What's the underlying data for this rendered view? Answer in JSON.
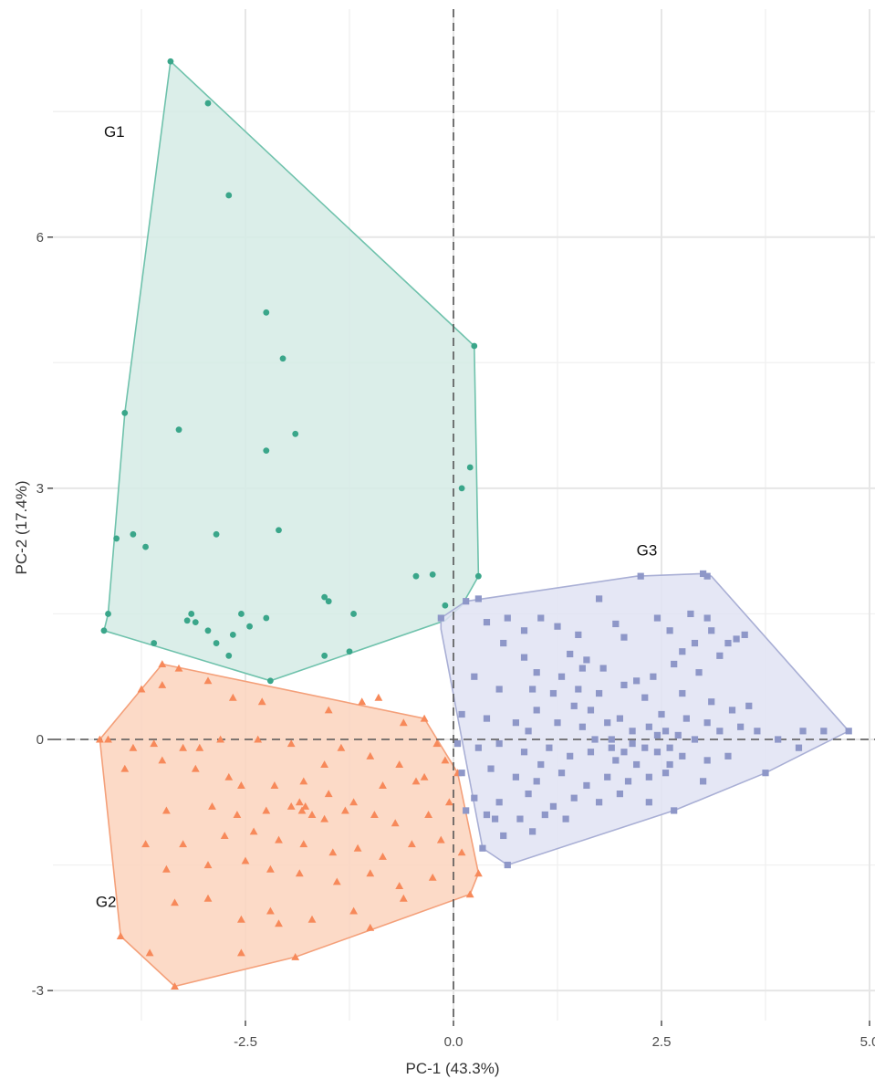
{
  "chart_data": {
    "type": "scatter",
    "title": "",
    "xlabel": "PC-1 (43.3%)",
    "ylabel": "PC-2 (17.4%)",
    "xlim": [
      -4.8,
      5.0
    ],
    "ylim": [
      -3.3,
      8.9
    ],
    "xticks": [
      -2.5,
      0.0,
      2.5,
      5.0
    ],
    "xtick_labels": [
      "-2.5",
      "0.0",
      "2.5",
      "5.0"
    ],
    "yticks": [
      -3,
      0,
      3,
      6
    ],
    "ytick_labels": [
      "-3",
      "0",
      "3",
      "6"
    ],
    "grid": true,
    "reference_lines": {
      "x": 0,
      "y": 0,
      "style": "dashed"
    },
    "series": [
      {
        "name": "G1",
        "marker": "circle",
        "color": "#3aa68a",
        "fill": "#d5ebe5",
        "stroke": "#6fc2ac",
        "hull": [
          [
            -3.4,
            8.1
          ],
          [
            0.25,
            4.7
          ],
          [
            0.3,
            1.95
          ],
          [
            0.1,
            1.6
          ],
          [
            -0.1,
            1.42
          ],
          [
            -2.2,
            0.7
          ],
          [
            -4.2,
            1.3
          ],
          [
            -4.15,
            1.5
          ],
          [
            -3.95,
            3.9
          ]
        ],
        "points": [
          [
            -3.4,
            8.1
          ],
          [
            -2.95,
            7.6
          ],
          [
            -2.7,
            6.5
          ],
          [
            -2.25,
            5.1
          ],
          [
            -2.05,
            4.55
          ],
          [
            -3.3,
            3.7
          ],
          [
            -2.25,
            3.45
          ],
          [
            -1.9,
            3.65
          ],
          [
            -3.95,
            3.9
          ],
          [
            -4.15,
            1.5
          ],
          [
            -4.2,
            1.3
          ],
          [
            -4.05,
            2.4
          ],
          [
            -3.85,
            2.45
          ],
          [
            -3.7,
            2.3
          ],
          [
            -2.85,
            2.45
          ],
          [
            -2.1,
            2.5
          ],
          [
            -3.6,
            1.15
          ],
          [
            -3.15,
            1.5
          ],
          [
            -3.2,
            1.42
          ],
          [
            -3.1,
            1.4
          ],
          [
            -2.95,
            1.3
          ],
          [
            -2.85,
            1.15
          ],
          [
            -2.65,
            1.25
          ],
          [
            -2.55,
            1.5
          ],
          [
            -2.45,
            1.35
          ],
          [
            -2.25,
            1.45
          ],
          [
            -2.7,
            1.0
          ],
          [
            -1.55,
            1.7
          ],
          [
            -1.5,
            1.65
          ],
          [
            -1.2,
            1.5
          ],
          [
            -1.55,
            1.0
          ],
          [
            -1.25,
            1.05
          ],
          [
            -0.45,
            1.95
          ],
          [
            -0.25,
            1.97
          ],
          [
            0.1,
            3.0
          ],
          [
            0.2,
            3.25
          ],
          [
            0.3,
            1.95
          ],
          [
            0.25,
            4.7
          ],
          [
            -0.1,
            1.6
          ],
          [
            -0.15,
            1.45
          ],
          [
            -2.2,
            0.7
          ]
        ]
      },
      {
        "name": "G2",
        "marker": "triangle",
        "color": "#f7895a",
        "fill": "#fcd3bd",
        "stroke": "#f4a07a",
        "hull": [
          [
            -3.5,
            0.9
          ],
          [
            -0.35,
            0.25
          ],
          [
            0.05,
            -0.4
          ],
          [
            0.3,
            -1.6
          ],
          [
            0.2,
            -1.85
          ],
          [
            -1.9,
            -2.6
          ],
          [
            -3.35,
            -2.95
          ],
          [
            -4.0,
            -2.35
          ],
          [
            -4.25,
            0.0
          ]
        ],
        "points": [
          [
            -3.5,
            0.9
          ],
          [
            -3.3,
            0.85
          ],
          [
            -2.95,
            0.7
          ],
          [
            -3.75,
            0.6
          ],
          [
            -3.5,
            0.65
          ],
          [
            -2.65,
            0.5
          ],
          [
            -2.3,
            0.45
          ],
          [
            -1.5,
            0.35
          ],
          [
            -1.1,
            0.45
          ],
          [
            -0.9,
            0.5
          ],
          [
            -0.6,
            0.2
          ],
          [
            -0.35,
            0.25
          ],
          [
            -0.2,
            -0.05
          ],
          [
            -4.25,
            0.0
          ],
          [
            -4.15,
            0.0
          ],
          [
            -3.85,
            -0.1
          ],
          [
            -3.6,
            -0.05
          ],
          [
            -3.25,
            -0.1
          ],
          [
            -3.05,
            -0.1
          ],
          [
            -2.8,
            0.0
          ],
          [
            -2.35,
            0.0
          ],
          [
            -1.95,
            -0.05
          ],
          [
            -1.55,
            -0.3
          ],
          [
            -1.35,
            -0.1
          ],
          [
            -1.0,
            -0.2
          ],
          [
            -0.65,
            -0.3
          ],
          [
            -0.45,
            -0.5
          ],
          [
            -3.95,
            -0.35
          ],
          [
            -3.5,
            -0.25
          ],
          [
            -3.1,
            -0.35
          ],
          [
            -2.7,
            -0.45
          ],
          [
            -2.55,
            -0.55
          ],
          [
            -2.15,
            -0.55
          ],
          [
            -1.8,
            -0.5
          ],
          [
            -1.5,
            -0.65
          ],
          [
            -1.2,
            -0.75
          ],
          [
            -0.85,
            -0.55
          ],
          [
            -0.35,
            -0.45
          ],
          [
            -0.1,
            -0.25
          ],
          [
            0.05,
            -0.4
          ],
          [
            -3.45,
            -0.85
          ],
          [
            -2.9,
            -0.8
          ],
          [
            -2.6,
            -0.9
          ],
          [
            -2.25,
            -0.85
          ],
          [
            -1.95,
            -0.8
          ],
          [
            -1.85,
            -0.75
          ],
          [
            -1.82,
            -0.85
          ],
          [
            -1.78,
            -0.8
          ],
          [
            -1.7,
            -0.9
          ],
          [
            -1.55,
            -0.95
          ],
          [
            -1.3,
            -0.85
          ],
          [
            -0.95,
            -0.9
          ],
          [
            -0.7,
            -1.0
          ],
          [
            -0.3,
            -0.9
          ],
          [
            -0.05,
            -0.75
          ],
          [
            -3.7,
            -1.25
          ],
          [
            -3.25,
            -1.25
          ],
          [
            -2.75,
            -1.15
          ],
          [
            -2.4,
            -1.1
          ],
          [
            -2.1,
            -1.2
          ],
          [
            -1.8,
            -1.25
          ],
          [
            -1.45,
            -1.35
          ],
          [
            -1.15,
            -1.3
          ],
          [
            -0.85,
            -1.4
          ],
          [
            -0.5,
            -1.25
          ],
          [
            -0.15,
            -1.2
          ],
          [
            0.1,
            -1.35
          ],
          [
            -3.45,
            -1.55
          ],
          [
            -2.95,
            -1.5
          ],
          [
            -2.5,
            -1.45
          ],
          [
            -2.2,
            -1.55
          ],
          [
            -1.85,
            -1.6
          ],
          [
            -1.4,
            -1.7
          ],
          [
            -1.0,
            -1.6
          ],
          [
            -0.65,
            -1.75
          ],
          [
            -0.25,
            -1.65
          ],
          [
            0.3,
            -1.6
          ],
          [
            0.2,
            -1.85
          ],
          [
            -3.35,
            -1.95
          ],
          [
            -2.95,
            -1.9
          ],
          [
            -2.55,
            -2.15
          ],
          [
            -2.2,
            -2.05
          ],
          [
            -1.7,
            -2.15
          ],
          [
            -1.2,
            -2.05
          ],
          [
            -0.6,
            -1.9
          ],
          [
            -4.0,
            -2.35
          ],
          [
            -3.65,
            -2.55
          ],
          [
            -2.55,
            -2.55
          ],
          [
            -1.9,
            -2.6
          ],
          [
            -3.35,
            -2.95
          ],
          [
            -2.1,
            -2.2
          ],
          [
            -1.0,
            -2.25
          ]
        ]
      },
      {
        "name": "G3",
        "marker": "square",
        "color": "#8e97c8",
        "fill": "#e1e3f3",
        "stroke": "#a9afd5",
        "hull": [
          [
            -0.15,
            1.45
          ],
          [
            0.15,
            1.65
          ],
          [
            2.2,
            1.95
          ],
          [
            3.0,
            1.98
          ],
          [
            3.1,
            1.95
          ],
          [
            4.75,
            0.1
          ],
          [
            3.75,
            -0.4
          ],
          [
            2.65,
            -0.85
          ],
          [
            0.65,
            -1.5
          ],
          [
            0.35,
            -1.3
          ],
          [
            -0.15,
            1.32
          ]
        ],
        "points": [
          [
            -0.15,
            1.45
          ],
          [
            0.15,
            1.65
          ],
          [
            0.3,
            1.68
          ],
          [
            1.75,
            1.68
          ],
          [
            2.25,
            1.95
          ],
          [
            3.0,
            1.98
          ],
          [
            3.05,
            1.95
          ],
          [
            0.65,
            1.45
          ],
          [
            1.05,
            1.45
          ],
          [
            1.25,
            1.35
          ],
          [
            1.95,
            1.38
          ],
          [
            2.45,
            1.45
          ],
          [
            2.85,
            1.5
          ],
          [
            3.05,
            1.45
          ],
          [
            3.1,
            1.3
          ],
          [
            3.4,
            1.2
          ],
          [
            3.5,
            1.25
          ],
          [
            3.3,
            1.15
          ],
          [
            0.4,
            1.4
          ],
          [
            0.85,
            1.3
          ],
          [
            1.5,
            1.25
          ],
          [
            2.05,
            1.22
          ],
          [
            2.6,
            1.3
          ],
          [
            2.75,
            1.05
          ],
          [
            2.9,
            1.15
          ],
          [
            3.2,
            1.0
          ],
          [
            0.6,
            1.15
          ],
          [
            0.85,
            0.98
          ],
          [
            1.4,
            1.02
          ],
          [
            1.6,
            0.95
          ],
          [
            1.8,
            0.85
          ],
          [
            2.2,
            0.7
          ],
          [
            2.4,
            0.75
          ],
          [
            0.25,
            0.75
          ],
          [
            0.55,
            0.6
          ],
          [
            0.95,
            0.6
          ],
          [
            1.2,
            0.55
          ],
          [
            1.5,
            0.6
          ],
          [
            1.75,
            0.55
          ],
          [
            2.05,
            0.65
          ],
          [
            2.3,
            0.5
          ],
          [
            2.75,
            0.55
          ],
          [
            3.1,
            0.45
          ],
          [
            3.35,
            0.35
          ],
          [
            0.1,
            0.3
          ],
          [
            0.4,
            0.25
          ],
          [
            0.75,
            0.2
          ],
          [
            1.0,
            0.35
          ],
          [
            1.25,
            0.2
          ],
          [
            1.55,
            0.15
          ],
          [
            1.85,
            0.2
          ],
          [
            2.0,
            0.25
          ],
          [
            2.15,
            0.1
          ],
          [
            2.35,
            0.15
          ],
          [
            2.55,
            0.1
          ],
          [
            2.7,
            0.05
          ],
          [
            2.9,
            0.0
          ],
          [
            3.2,
            0.1
          ],
          [
            3.45,
            0.15
          ],
          [
            3.65,
            0.1
          ],
          [
            3.9,
            0.0
          ],
          [
            4.2,
            0.1
          ],
          [
            4.45,
            0.1
          ],
          [
            4.75,
            0.1
          ],
          [
            0.05,
            -0.05
          ],
          [
            0.3,
            -0.1
          ],
          [
            0.55,
            -0.05
          ],
          [
            0.85,
            -0.15
          ],
          [
            1.15,
            -0.1
          ],
          [
            1.4,
            -0.2
          ],
          [
            1.65,
            -0.15
          ],
          [
            1.9,
            -0.1
          ],
          [
            2.15,
            -0.05
          ],
          [
            2.45,
            -0.15
          ],
          [
            2.6,
            -0.1
          ],
          [
            2.75,
            -0.2
          ],
          [
            3.05,
            -0.25
          ],
          [
            3.3,
            -0.2
          ],
          [
            4.15,
            -0.1
          ],
          [
            0.1,
            -0.4
          ],
          [
            0.45,
            -0.35
          ],
          [
            0.75,
            -0.45
          ],
          [
            1.0,
            -0.5
          ],
          [
            1.3,
            -0.4
          ],
          [
            1.6,
            -0.55
          ],
          [
            1.85,
            -0.45
          ],
          [
            2.1,
            -0.5
          ],
          [
            2.35,
            -0.45
          ],
          [
            2.55,
            -0.4
          ],
          [
            3.0,
            -0.5
          ],
          [
            3.75,
            -0.4
          ],
          [
            0.25,
            -0.7
          ],
          [
            0.55,
            -0.75
          ],
          [
            0.9,
            -0.65
          ],
          [
            1.2,
            -0.8
          ],
          [
            1.45,
            -0.7
          ],
          [
            1.75,
            -0.75
          ],
          [
            2.0,
            -0.65
          ],
          [
            2.35,
            -0.75
          ],
          [
            2.65,
            -0.85
          ],
          [
            0.4,
            -0.9
          ],
          [
            0.8,
            -0.95
          ],
          [
            1.1,
            -0.9
          ],
          [
            1.35,
            -0.95
          ],
          [
            0.35,
            -1.3
          ],
          [
            0.6,
            -1.15
          ],
          [
            0.95,
            -1.1
          ],
          [
            0.65,
            -1.5
          ],
          [
            0.5,
            -0.95
          ],
          [
            0.15,
            -0.85
          ],
          [
            1.95,
            -0.25
          ],
          [
            2.2,
            -0.3
          ],
          [
            2.3,
            -0.1
          ],
          [
            1.9,
            0.0
          ],
          [
            2.05,
            -0.15
          ],
          [
            1.7,
            0.0
          ],
          [
            2.45,
            0.05
          ],
          [
            2.6,
            -0.3
          ],
          [
            0.9,
            0.1
          ],
          [
            1.05,
            -0.3
          ],
          [
            1.45,
            0.4
          ],
          [
            1.65,
            0.35
          ],
          [
            2.5,
            0.3
          ],
          [
            2.8,
            0.25
          ],
          [
            3.05,
            0.2
          ],
          [
            3.55,
            0.4
          ],
          [
            1.0,
            0.8
          ],
          [
            1.3,
            0.75
          ],
          [
            1.55,
            0.85
          ],
          [
            2.65,
            0.9
          ],
          [
            2.95,
            0.8
          ]
        ]
      }
    ],
    "annotations": [
      {
        "text": "G1",
        "x": -4.2,
        "y": 7.2
      },
      {
        "text": "G2",
        "x": -4.3,
        "y": -2.0
      },
      {
        "text": "G3",
        "x": 2.2,
        "y": 2.2
      }
    ]
  }
}
